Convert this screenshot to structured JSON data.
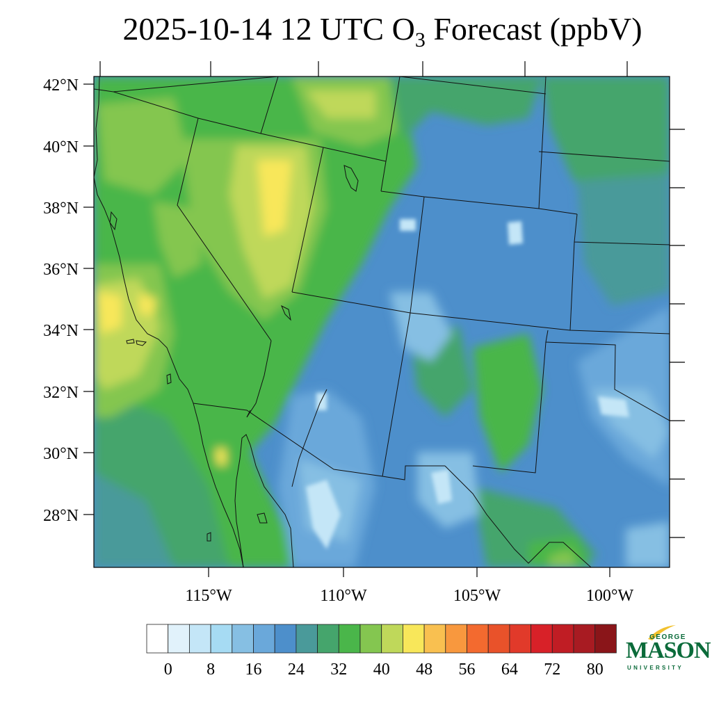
{
  "title": {
    "prefix": "2025-10-14 12 UTC O",
    "subscript": "3",
    "suffix": " Forecast (ppbV)"
  },
  "map": {
    "lat_labels": [
      "42°N",
      "40°N",
      "38°N",
      "36°N",
      "34°N",
      "32°N",
      "30°N",
      "28°N"
    ],
    "lon_labels": [
      "115°W",
      "110°W",
      "105°W",
      "100°W"
    ]
  },
  "colorbar": {
    "colors": [
      "#ffffff",
      "#e1f2fb",
      "#c4e6f7",
      "#a6dbf3",
      "#86bfe3",
      "#6aa8da",
      "#4d8fcb",
      "#4a9a9a",
      "#45a56c",
      "#4ab64a",
      "#84c650",
      "#bfd85a",
      "#f8e75a",
      "#f9c050",
      "#f8983e",
      "#f36a2f",
      "#e9522a",
      "#e13a2a",
      "#d82128",
      "#c01d24",
      "#a81b22",
      "#8a1519"
    ],
    "tick_labels": [
      "0",
      "8",
      "16",
      "24",
      "32",
      "40",
      "48",
      "56",
      "64",
      "72",
      "80"
    ]
  },
  "logo": {
    "line1": "GEORGE",
    "line2": "MASON",
    "line3": "UNIVERSITY",
    "color": "#0b6b3a",
    "accent": "#f2c12e"
  }
}
